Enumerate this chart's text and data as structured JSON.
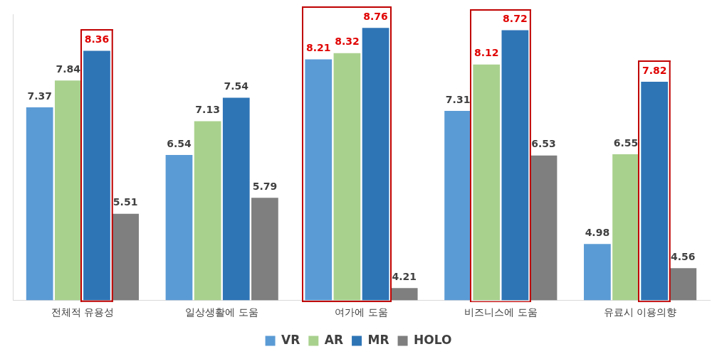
{
  "chart_data": {
    "type": "bar",
    "categories": [
      "전체적 유용성",
      "일상생활에 도움",
      "여가에 도움",
      "비즈니스에 도움",
      "유료시 이용의향"
    ],
    "series": [
      {
        "name": "VR",
        "color": "#5b9bd5",
        "values": [
          7.37,
          6.54,
          8.21,
          7.31,
          4.98
        ]
      },
      {
        "name": "AR",
        "color": "#a9d18e",
        "values": [
          7.84,
          7.13,
          8.32,
          8.12,
          6.55
        ]
      },
      {
        "name": "MR",
        "color": "#2e75b6",
        "values": [
          8.36,
          7.54,
          8.76,
          8.72,
          7.82
        ]
      },
      {
        "name": "HOLO",
        "color": "#7f7f7f",
        "values": [
          5.51,
          5.79,
          4.21,
          6.53,
          4.56
        ]
      }
    ],
    "ylim": [
      4,
      9
    ],
    "tick_labels": "x",
    "data_labels": true,
    "legend": "bottom"
  }
}
